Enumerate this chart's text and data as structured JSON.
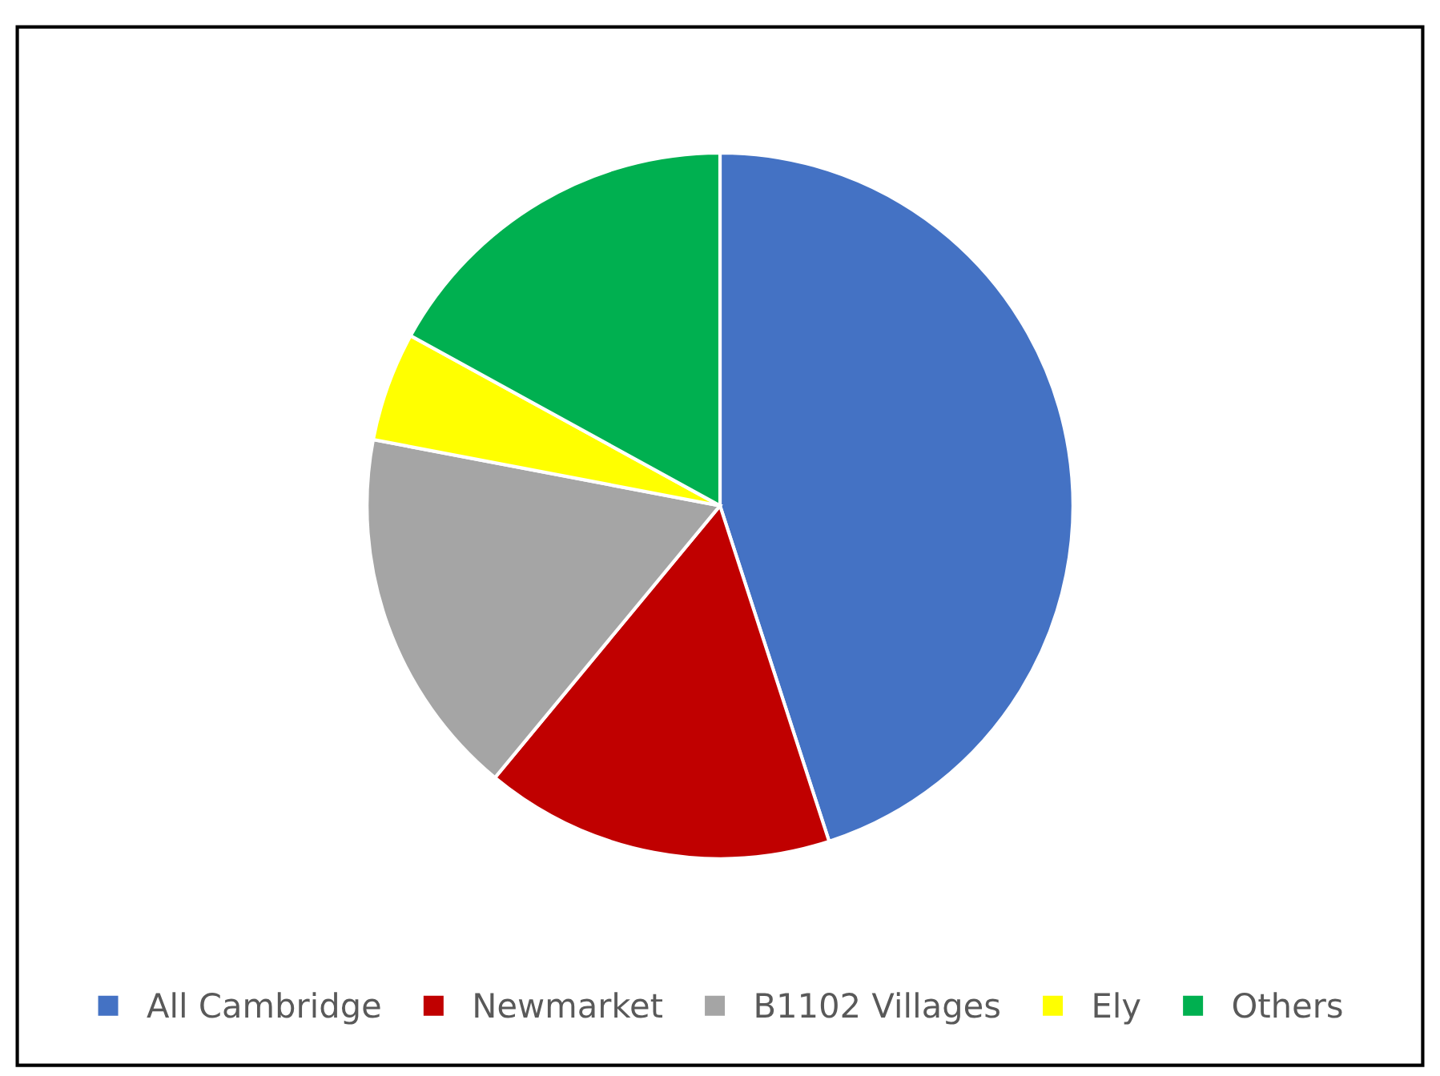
{
  "chart_data": {
    "type": "pie",
    "categories": [
      "All Cambridge",
      "Newmarket",
      "B1102 Villages",
      "Ely",
      "Others"
    ],
    "values": [
      45,
      16,
      17,
      5,
      17
    ],
    "colors": [
      "#4472c4",
      "#c00000",
      "#a5a5a5",
      "#ffff00",
      "#00b050"
    ],
    "legend": "bottom"
  }
}
